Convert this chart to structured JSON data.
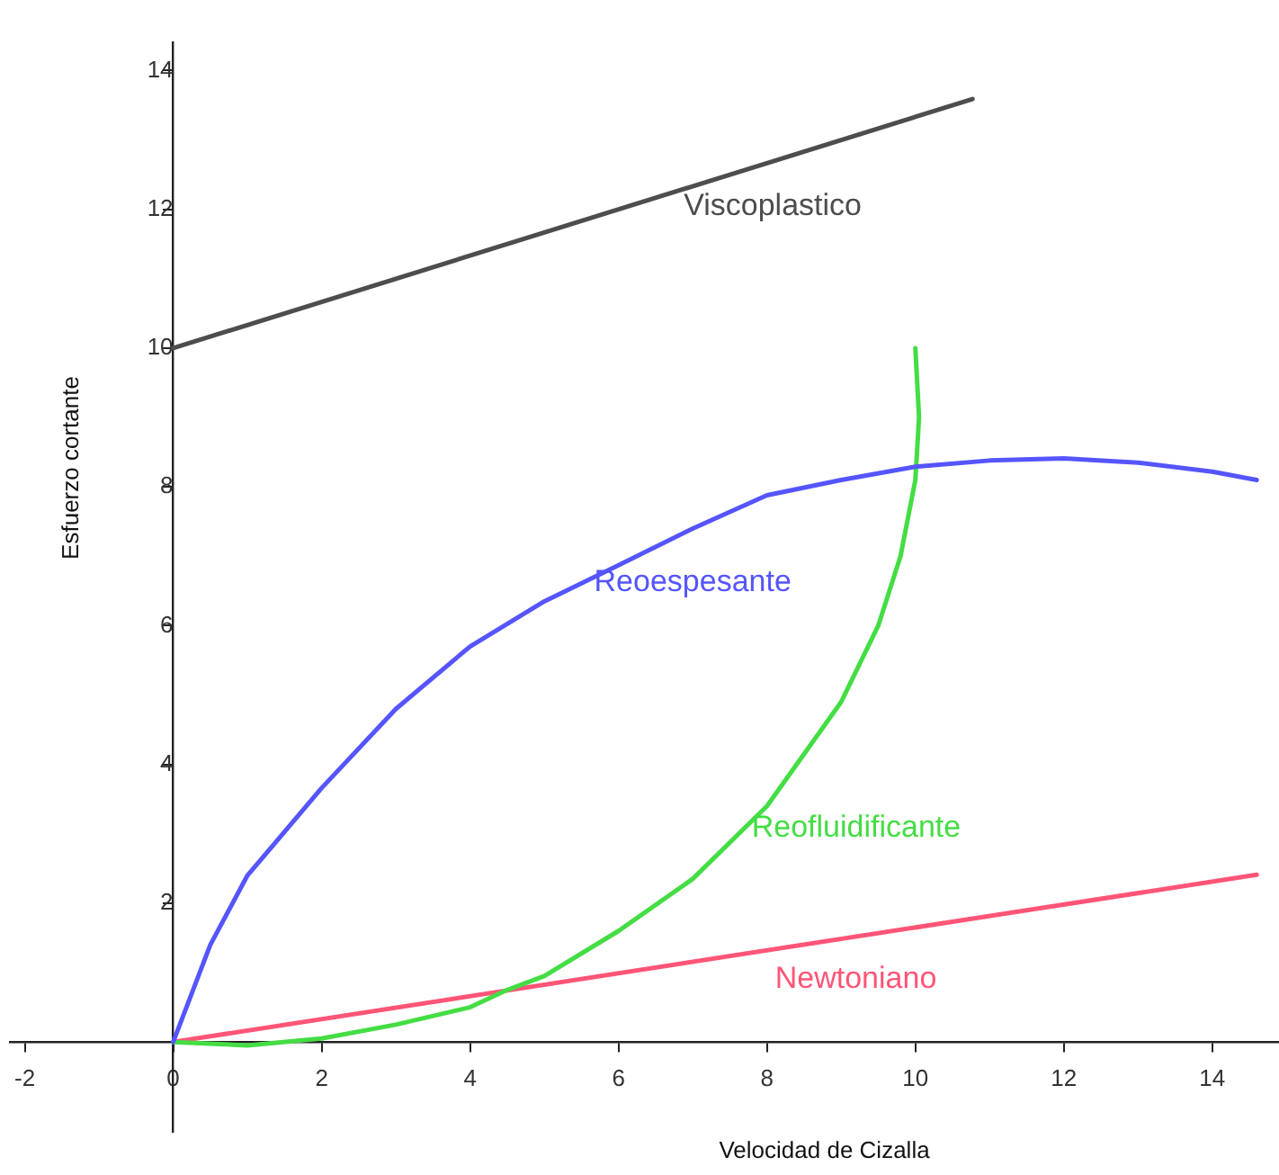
{
  "chart_data": {
    "type": "line",
    "xlabel": "Velocidad de Cizalla",
    "ylabel": "Esfuerzo cortante",
    "xlim": [
      -2.2,
      14.9
    ],
    "ylim": [
      -1.3,
      14.4
    ],
    "xticks": [
      {
        "value": -2,
        "label": "-2"
      },
      0,
      2,
      4,
      6,
      8,
      10,
      12,
      14
    ],
    "yticks": [
      2,
      4,
      6,
      8,
      10,
      12,
      14
    ],
    "grid": false,
    "legend": false,
    "marker": "none",
    "line_style": "solid",
    "series": [
      {
        "name": "Viscoplastico",
        "color": "#4d4d4d",
        "x": [
          0,
          10.77
        ],
        "values": [
          10,
          13.59
        ]
      },
      {
        "name": "Reoespesante",
        "color": "#5555ff",
        "x": [
          0,
          0.5,
          1,
          2,
          3,
          4,
          5,
          6,
          7,
          8,
          9,
          10,
          11,
          12,
          13,
          14,
          14.6
        ],
        "values": [
          0,
          1.4,
          2.4,
          3.66,
          4.8,
          5.7,
          6.35,
          6.87,
          7.4,
          7.88,
          8.1,
          8.29,
          8.38,
          8.41,
          8.35,
          8.22,
          8.1
        ]
      },
      {
        "name": "Reofluidificante",
        "color": "#44dd44",
        "x": [
          0,
          1,
          2,
          3,
          4,
          4.5,
          5,
          6,
          7,
          8,
          9,
          9.5,
          9.8,
          10,
          10.05,
          10.0
        ],
        "values": [
          0,
          -0.05,
          0.05,
          0.25,
          0.5,
          0.75,
          0.95,
          1.6,
          2.35,
          3.4,
          4.9,
          6.0,
          7.0,
          8.1,
          9.0,
          10.0
        ]
      },
      {
        "name": "Newtoniano",
        "color": "#ff5577",
        "x": [
          0,
          14.6
        ],
        "values": [
          0,
          2.41
        ]
      }
    ]
  }
}
